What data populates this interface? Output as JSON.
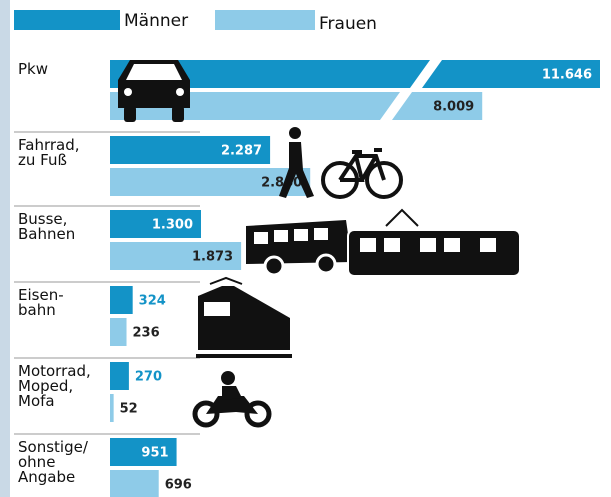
{
  "chart_data": {
    "type": "bar",
    "categories": [
      "Pkw",
      "Fahrrad,\nzu Fuß",
      "Busse,\nBahnen",
      "Eisen-\nbahn",
      "Motorrad,\nMoped,\nMofa",
      "Sonstige/\nohne\nAngabe"
    ],
    "series": [
      {
        "name": "Männer",
        "color": "#1393c7",
        "values": [
          11646,
          2287,
          1300,
          324,
          270,
          951
        ],
        "value_labels": [
          "11.646",
          "2.287",
          "1.300",
          "324",
          "270",
          "951"
        ]
      },
      {
        "name": "Frauen",
        "color": "#8ecbe8",
        "values": [
          8009,
          2860,
          1873,
          236,
          52,
          696
        ],
        "value_labels": [
          "8.009",
          "2.860",
          "1.873",
          "236",
          "52",
          "696"
        ]
      }
    ]
  }
}
